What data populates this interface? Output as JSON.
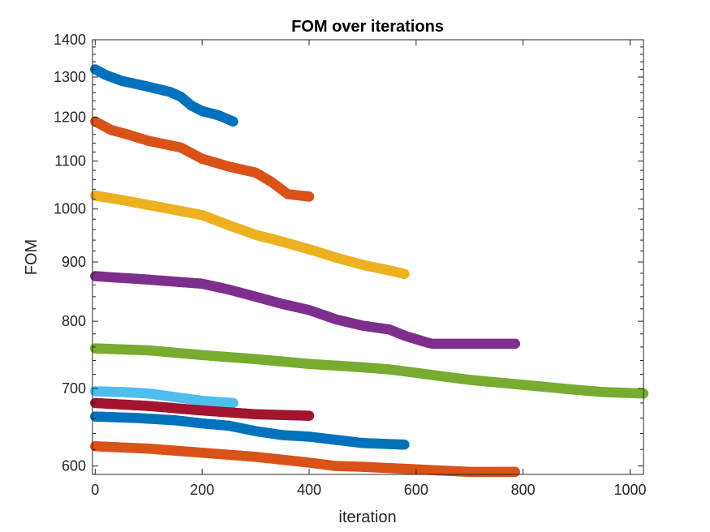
{
  "chart_data": {
    "type": "scatter",
    "title": "FOM over iterations",
    "xlabel": "iteration",
    "ylabel": "FOM",
    "xlim": [
      -5,
      1025
    ],
    "ylim": [
      590,
      1400
    ],
    "yscale": "log",
    "xticks": [
      0,
      200,
      400,
      600,
      800,
      1000
    ],
    "yticks": [
      600,
      700,
      800,
      900,
      1000,
      1100,
      1200,
      1300,
      1400
    ],
    "grid": false,
    "legend": "none",
    "series": [
      {
        "color": "#0072BD",
        "points": [
          [
            0,
            1320
          ],
          [
            20,
            1305
          ],
          [
            50,
            1290
          ],
          [
            100,
            1275
          ],
          [
            140,
            1262
          ],
          [
            160,
            1250
          ],
          [
            180,
            1228
          ],
          [
            200,
            1215
          ],
          [
            230,
            1205
          ],
          [
            258,
            1190
          ]
        ]
      },
      {
        "color": "#D95319",
        "points": [
          [
            0,
            1190
          ],
          [
            30,
            1170
          ],
          [
            60,
            1160
          ],
          [
            100,
            1145
          ],
          [
            160,
            1130
          ],
          [
            200,
            1105
          ],
          [
            250,
            1088
          ],
          [
            300,
            1075
          ],
          [
            330,
            1055
          ],
          [
            360,
            1030
          ],
          [
            400,
            1025
          ]
        ]
      },
      {
        "color": "#EDB120",
        "points": [
          [
            0,
            1027
          ],
          [
            50,
            1018
          ],
          [
            100,
            1008
          ],
          [
            150,
            998
          ],
          [
            200,
            988
          ],
          [
            250,
            968
          ],
          [
            300,
            950
          ],
          [
            350,
            937
          ],
          [
            400,
            923
          ],
          [
            450,
            908
          ],
          [
            500,
            895
          ],
          [
            550,
            885
          ],
          [
            578,
            879
          ]
        ]
      },
      {
        "color": "#7E2F8E",
        "points": [
          [
            0,
            875
          ],
          [
            100,
            869
          ],
          [
            200,
            862
          ],
          [
            250,
            852
          ],
          [
            300,
            840
          ],
          [
            350,
            828
          ],
          [
            400,
            818
          ],
          [
            450,
            803
          ],
          [
            500,
            793
          ],
          [
            550,
            787
          ],
          [
            580,
            777
          ],
          [
            620,
            767
          ],
          [
            630,
            765
          ],
          [
            785,
            765
          ]
        ]
      },
      {
        "color": "#77AC30",
        "points": [
          [
            0,
            758
          ],
          [
            100,
            755
          ],
          [
            200,
            748
          ],
          [
            300,
            742
          ],
          [
            400,
            735
          ],
          [
            500,
            730
          ],
          [
            550,
            727
          ],
          [
            600,
            722
          ],
          [
            700,
            712
          ],
          [
            800,
            705
          ],
          [
            900,
            698
          ],
          [
            950,
            695
          ],
          [
            1025,
            693
          ]
        ]
      },
      {
        "color": "#4DBEEE",
        "points": [
          [
            0,
            696
          ],
          [
            50,
            695
          ],
          [
            100,
            693
          ],
          [
            150,
            688
          ],
          [
            200,
            683
          ],
          [
            258,
            680
          ]
        ]
      },
      {
        "color": "#A2142F",
        "points": [
          [
            0,
            680
          ],
          [
            100,
            676
          ],
          [
            200,
            670
          ],
          [
            300,
            665
          ],
          [
            400,
            663
          ]
        ]
      },
      {
        "color": "#0072BD",
        "points": [
          [
            0,
            662
          ],
          [
            80,
            660
          ],
          [
            150,
            657
          ],
          [
            200,
            653
          ],
          [
            250,
            650
          ],
          [
            300,
            643
          ],
          [
            350,
            638
          ],
          [
            400,
            636
          ],
          [
            450,
            632
          ],
          [
            500,
            628
          ],
          [
            578,
            626
          ]
        ]
      },
      {
        "color": "#D95319",
        "points": [
          [
            0,
            624
          ],
          [
            100,
            621
          ],
          [
            200,
            616
          ],
          [
            300,
            611
          ],
          [
            400,
            604
          ],
          [
            450,
            600
          ],
          [
            500,
            599
          ],
          [
            600,
            596
          ],
          [
            700,
            593
          ],
          [
            785,
            593
          ]
        ]
      }
    ]
  }
}
